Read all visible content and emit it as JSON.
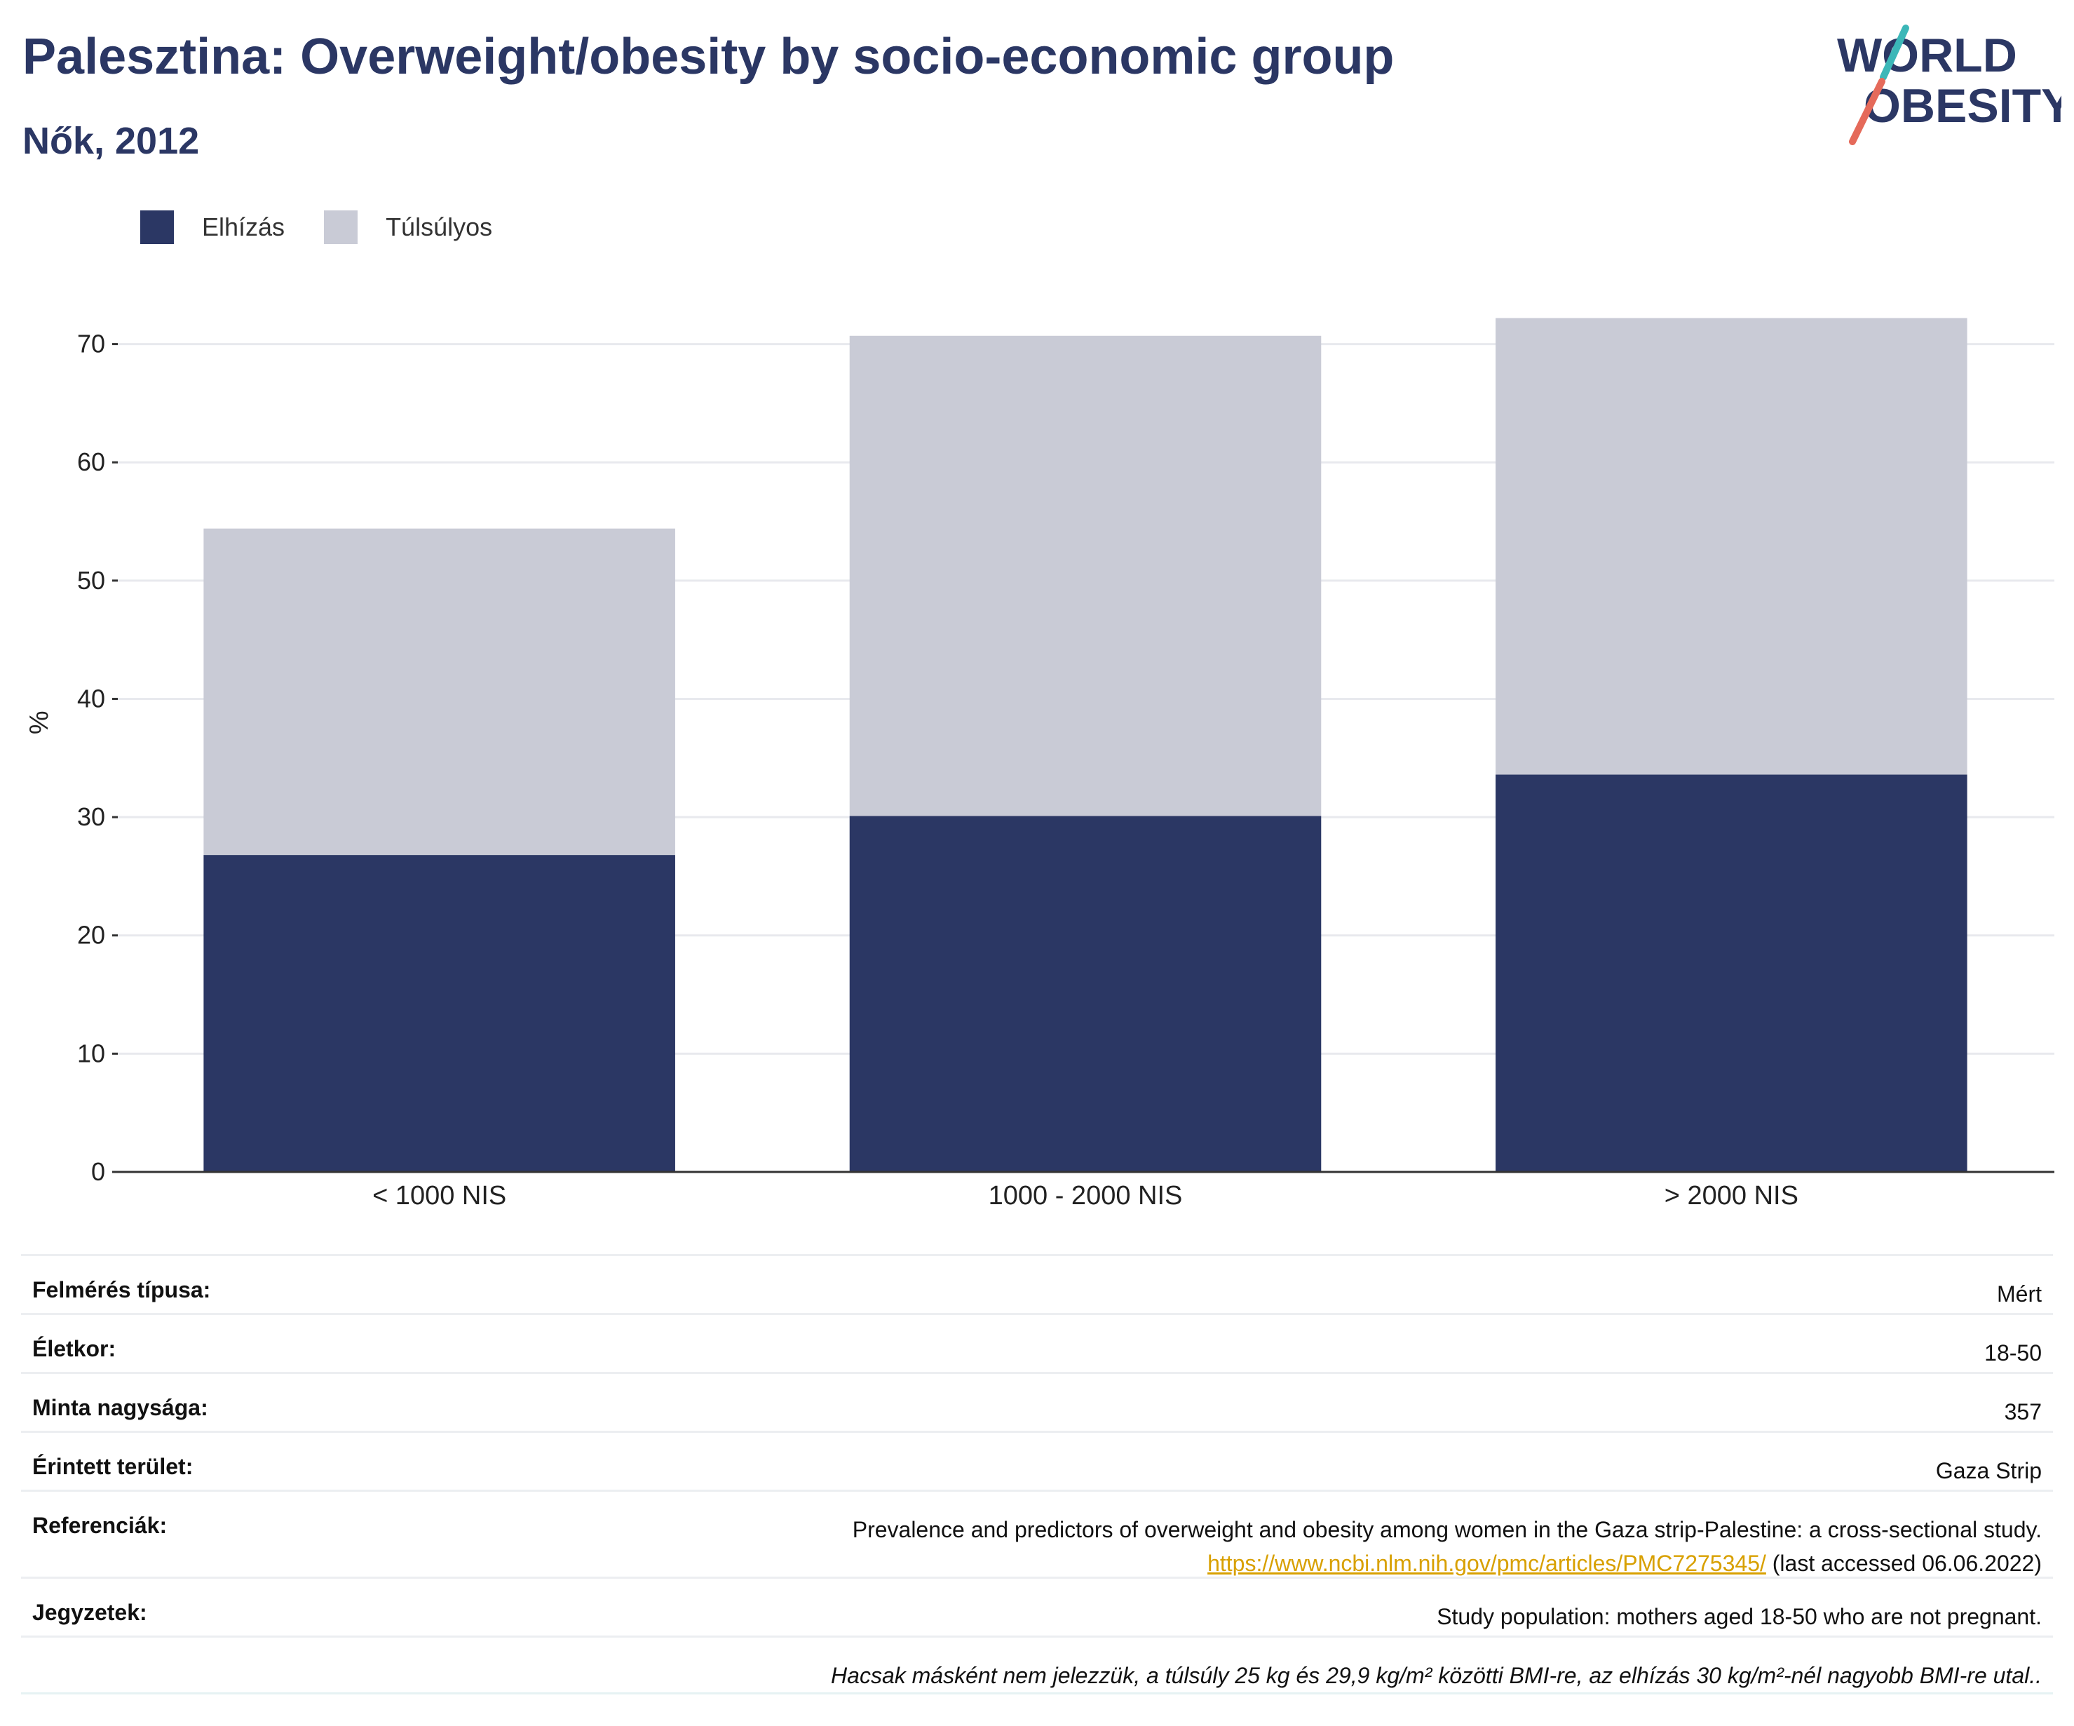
{
  "header": {
    "title": "Palesztina: Overweight/obesity by socio-economic group",
    "subtitle": "Nők, 2012"
  },
  "logo": {
    "line1": "WORLD",
    "line2": "OBESITY"
  },
  "colors": {
    "obesity": "#2b3764",
    "overweight": "#c9cbd6",
    "title": "#2b3764",
    "link": "#d8a000"
  },
  "chart_data": {
    "type": "bar",
    "stacked": true,
    "categories": [
      "< 1000 NIS",
      "1000 - 2000 NIS",
      "> 2000 NIS"
    ],
    "series": [
      {
        "name": "Elhízás",
        "values": [
          26.8,
          30.1,
          33.6
        ]
      },
      {
        "name": "Túlsúlyos",
        "values": [
          27.6,
          40.6,
          38.6
        ]
      }
    ],
    "ylabel": "%",
    "ylim": [
      0,
      73
    ],
    "yticks": [
      0,
      10,
      20,
      30,
      40,
      50,
      60,
      70
    ],
    "grid": true,
    "legend": "top-left"
  },
  "info": [
    {
      "label": "Felmérés típusa:",
      "value": "Mért"
    },
    {
      "label": "Életkor:",
      "value": "18-50"
    },
    {
      "label": "Minta nagysága:",
      "value": "357"
    },
    {
      "label": "Érintett terület:",
      "value": "Gaza Strip"
    },
    {
      "label": "Referenciák:",
      "value": "Prevalence and predictors of overweight and obesity among women in the Gaza strip-Palestine: a cross-sectional study.",
      "link": "https://www.ncbi.nlm.nih.gov/pmc/articles/PMC7275345/",
      "accessed": "(last accessed 06.06.2022)"
    },
    {
      "label": "Jegyzetek:",
      "value": "Study population: mothers aged 18-50 who are not pregnant."
    }
  ],
  "footnote": "Hacsak másként nem jelezzük, a túlsúly 25 kg és 29,9 kg/m² közötti BMI-re, az elhízás 30 kg/m²-nél nagyobb BMI-re utal.."
}
